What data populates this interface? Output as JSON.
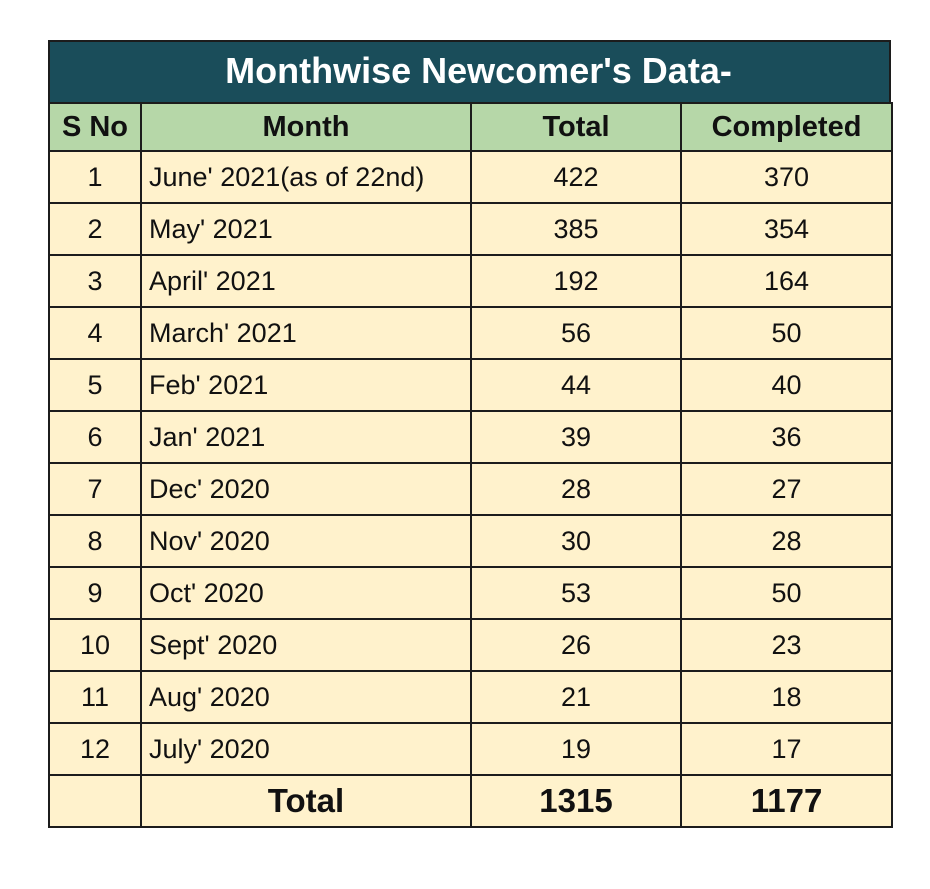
{
  "title": "Monthwise Newcomer's Data-",
  "headers": {
    "sno": "S No",
    "month": "Month",
    "total": "Total",
    "completed": "Completed"
  },
  "rows": [
    {
      "sno": "1",
      "month": "June' 2021(as of 22nd)",
      "total": "422",
      "completed": "370"
    },
    {
      "sno": "2",
      "month": "May' 2021",
      "total": "385",
      "completed": "354"
    },
    {
      "sno": "3",
      "month": "April' 2021",
      "total": "192",
      "completed": "164"
    },
    {
      "sno": "4",
      "month": "March' 2021",
      "total": "56",
      "completed": "50"
    },
    {
      "sno": "5",
      "month": "Feb' 2021",
      "total": "44",
      "completed": "40"
    },
    {
      "sno": "6",
      "month": "Jan' 2021",
      "total": "39",
      "completed": "36"
    },
    {
      "sno": "7",
      "month": "Dec' 2020",
      "total": "28",
      "completed": "27"
    },
    {
      "sno": "8",
      "month": "Nov' 2020",
      "total": "30",
      "completed": "28"
    },
    {
      "sno": "9",
      "month": "Oct' 2020",
      "total": "53",
      "completed": "50"
    },
    {
      "sno": "10",
      "month": "Sept' 2020",
      "total": "26",
      "completed": "23"
    },
    {
      "sno": "11",
      "month": "Aug' 2020",
      "total": "21",
      "completed": "18"
    },
    {
      "sno": "12",
      "month": "July' 2020",
      "total": "19",
      "completed": "17"
    }
  ],
  "footer": {
    "label": "Total",
    "total": "1315",
    "completed": "1177"
  },
  "colors": {
    "title_bg": "#1a4d5a",
    "header_bg": "#b6d7a8",
    "cell_bg": "#fff2cc"
  }
}
